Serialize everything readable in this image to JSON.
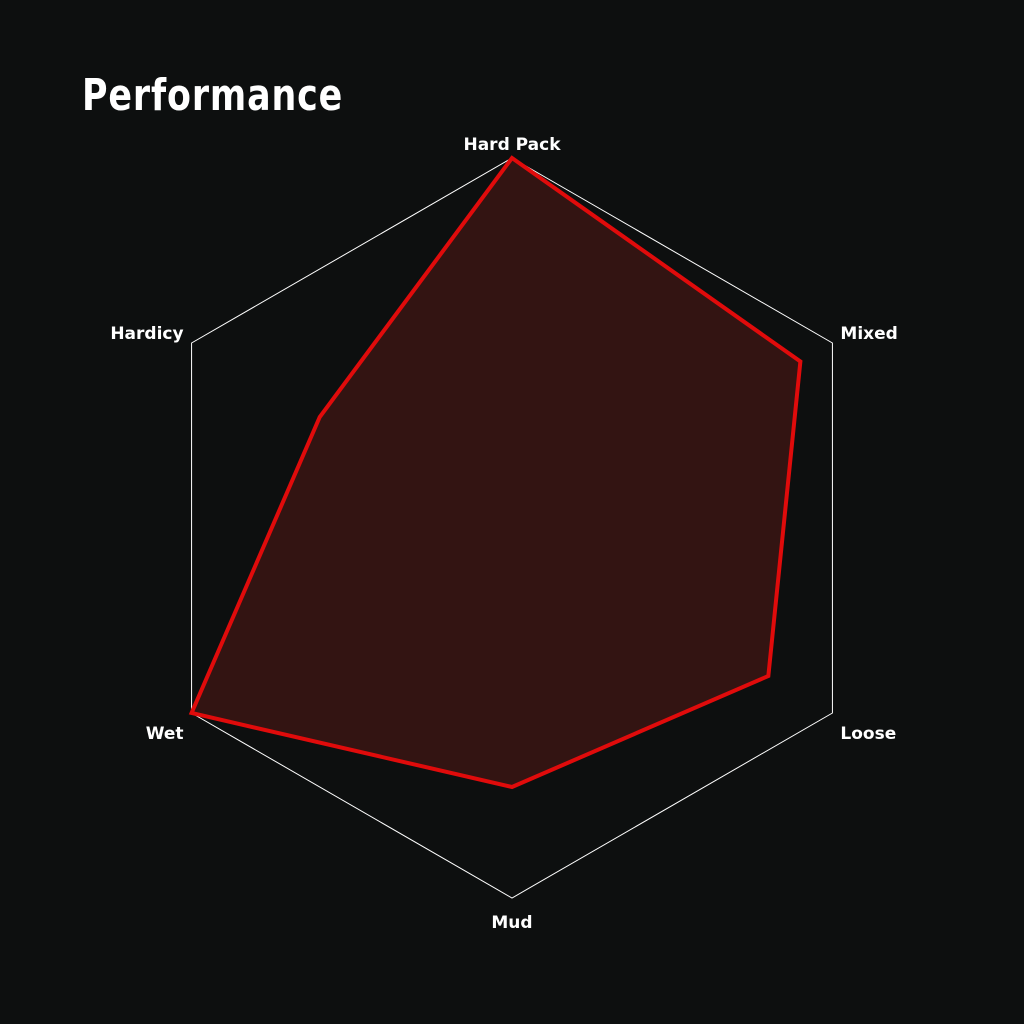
{
  "title": "Performance",
  "chart_data": {
    "type": "radar",
    "title": "Performance",
    "categories": [
      "Hard Pack",
      "Mixed",
      "Loose",
      "Mud",
      "Wet",
      "Hardicy"
    ],
    "values": [
      1.0,
      0.9,
      0.8,
      0.7,
      1.0,
      0.6
    ],
    "range": [
      0,
      1
    ],
    "grid": "outer hexagon only",
    "colors": {
      "background": "#0d0f0f",
      "fill": "#331412",
      "stroke": "#e00b0b",
      "grid": "#ffffff",
      "text": "#ffffff"
    }
  }
}
